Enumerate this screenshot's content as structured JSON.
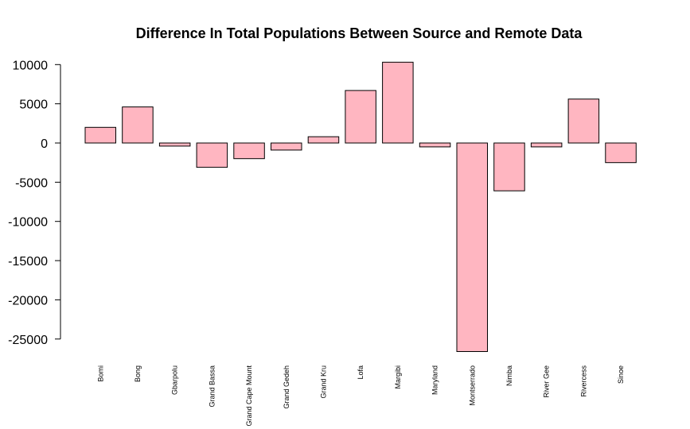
{
  "chart_data": {
    "type": "bar",
    "title": "Difference In Total Populations Between Source and Remote Data",
    "xlabel": "",
    "ylabel": "",
    "categories": [
      "Bomi",
      "Bong",
      "Gbarpolu",
      "Grand Bassa",
      "Grand Cape Mount",
      "Grand Gedeh",
      "Grand Kru",
      "Lofa",
      "Margibi",
      "Maryland",
      "Montserrado",
      "Nimba",
      "River Gee",
      "Rivercess",
      "Sinoe"
    ],
    "values": [
      2000,
      4600,
      -400,
      -3100,
      -2000,
      -900,
      800,
      6700,
      10300,
      -500,
      -26600,
      -6100,
      -500,
      5600,
      -2500
    ],
    "yticks": [
      10000,
      5000,
      0,
      -5000,
      -10000,
      -15000,
      -20000,
      -25000
    ],
    "ytick_labels": [
      "10000",
      "5000",
      "0",
      "-5000",
      "-10000",
      "-15000",
      "-20000",
      "-25000"
    ],
    "ylim": [
      -25000,
      10000
    ],
    "grid": false,
    "colors": {
      "bar_fill": "#ffb6c1",
      "bar_stroke": "#000000"
    }
  }
}
